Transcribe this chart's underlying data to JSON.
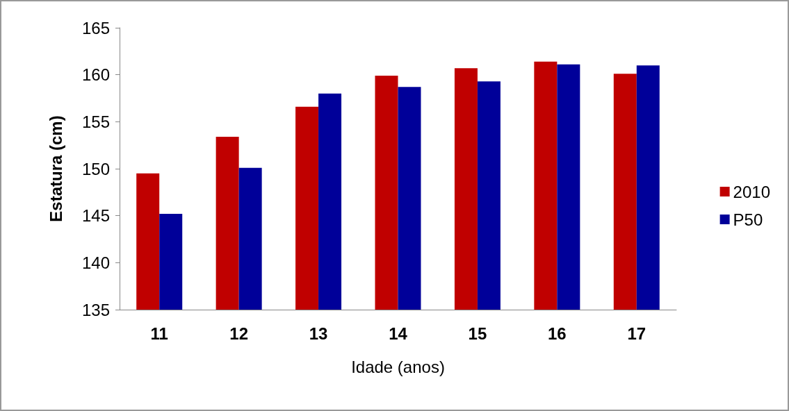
{
  "chart_data": {
    "type": "bar",
    "xlabel": "Idade (anos)",
    "ylabel": "Estatura (cm)",
    "categories": [
      "11",
      "12",
      "13",
      "14",
      "15",
      "16",
      "17"
    ],
    "series": [
      {
        "name": "2010",
        "color": "#c00000",
        "values": [
          149.5,
          153.4,
          156.6,
          159.9,
          160.7,
          161.4,
          160.1
        ]
      },
      {
        "name": "P50",
        "color": "#000099",
        "values": [
          145.2,
          150.1,
          158.0,
          158.7,
          159.3,
          161.1,
          161.0
        ]
      }
    ],
    "ylim": [
      135,
      165
    ],
    "yticks": [
      135,
      140,
      145,
      150,
      155,
      160,
      165
    ],
    "grid": false,
    "legend": "right"
  }
}
